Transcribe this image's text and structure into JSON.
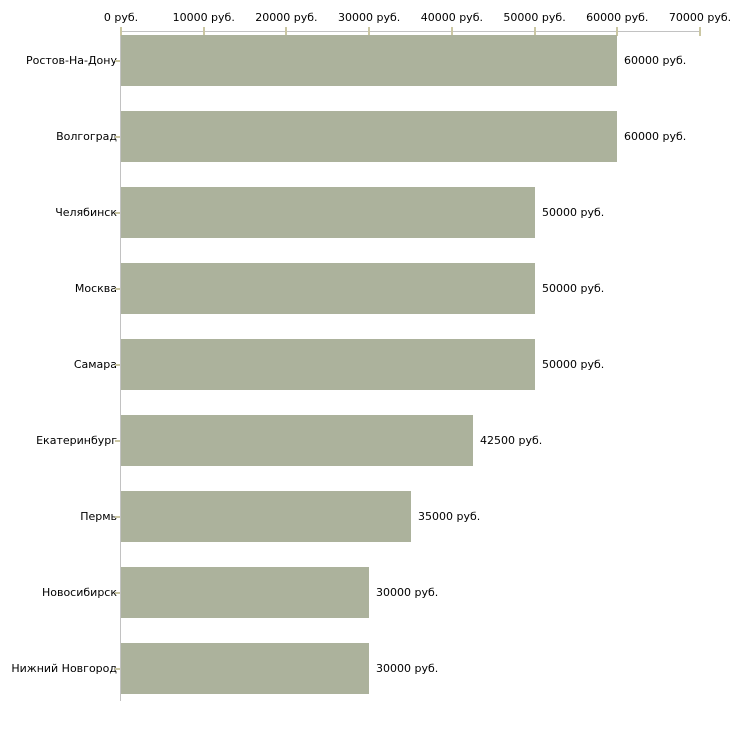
{
  "chart_data": {
    "type": "bar",
    "orientation": "horizontal",
    "title": "",
    "legend": "none",
    "grid": "off",
    "unit_suffix": " руб.",
    "categories": [
      "Ростов-На-Дону",
      "Волгоград",
      "Челябинск",
      "Москва",
      "Самара",
      "Екатеринбург",
      "Пермь",
      "Новосибирск",
      "Нижний Новгород"
    ],
    "values": [
      60000,
      60000,
      50000,
      50000,
      50000,
      42500,
      35000,
      30000,
      30000
    ],
    "bar_labels": [
      "60000 руб.",
      "60000 руб.",
      "50000 руб.",
      "50000 руб.",
      "50000 руб.",
      "42500 руб.",
      "35000 руб.",
      "30000 руб.",
      "30000 руб."
    ],
    "x_axis": {
      "position": "top",
      "min": 0,
      "max": 70000,
      "tick_values": [
        0,
        10000,
        20000,
        30000,
        40000,
        50000,
        60000,
        70000
      ],
      "tick_labels": [
        "0 руб.",
        "10000 руб.",
        "20000 руб.",
        "30000 руб.",
        "40000 руб.",
        "50000 руб.",
        "60000 руб.",
        "70000 руб."
      ]
    },
    "colors": {
      "bar": "#acb29c",
      "axis_line": "#c2c2c2",
      "tick": "#cbc7a3",
      "text": "#000000",
      "background": "#ffffff"
    }
  }
}
